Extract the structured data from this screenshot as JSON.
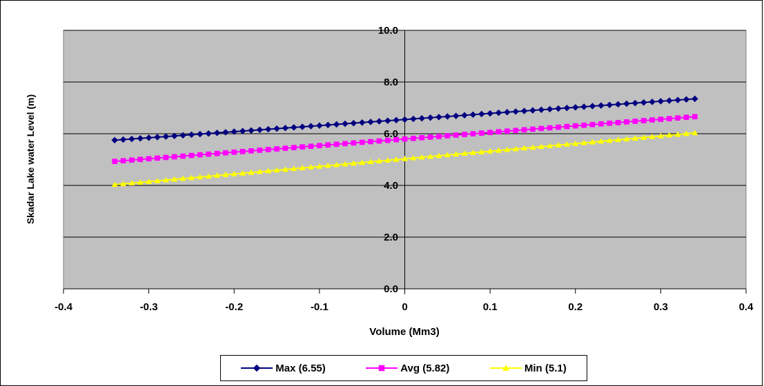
{
  "chart_data": {
    "type": "line",
    "xlabel": "Volume (Mm3)",
    "ylabel": "Skadar Lake water Level (m)",
    "xlim": [
      -0.4,
      0.4
    ],
    "ylim": [
      0,
      10
    ],
    "x_ticks": [
      "-0.4",
      "-0.3",
      "-0.2",
      "-0.1",
      "0",
      "0.1",
      "0.2",
      "0.3",
      "0.4"
    ],
    "y_ticks": [
      "0.0",
      "2.0",
      "4.0",
      "6.0",
      "8.0",
      "10.0"
    ],
    "grid": "horizontal",
    "legend_position": "bottom",
    "x_range": [
      -0.34,
      0.34
    ],
    "series": [
      {
        "name": "Max (6.55)",
        "color": "#000080",
        "marker": "diamond",
        "y_range": [
          5.75,
          7.35
        ]
      },
      {
        "name": "Avg (5.82)",
        "color": "#ff00ff",
        "marker": "square",
        "y_range": [
          4.93,
          6.66
        ]
      },
      {
        "name": "Min (5.1)",
        "color": "#ffff00",
        "marker": "triangle",
        "y_range": [
          4.03,
          6.03
        ]
      }
    ]
  }
}
